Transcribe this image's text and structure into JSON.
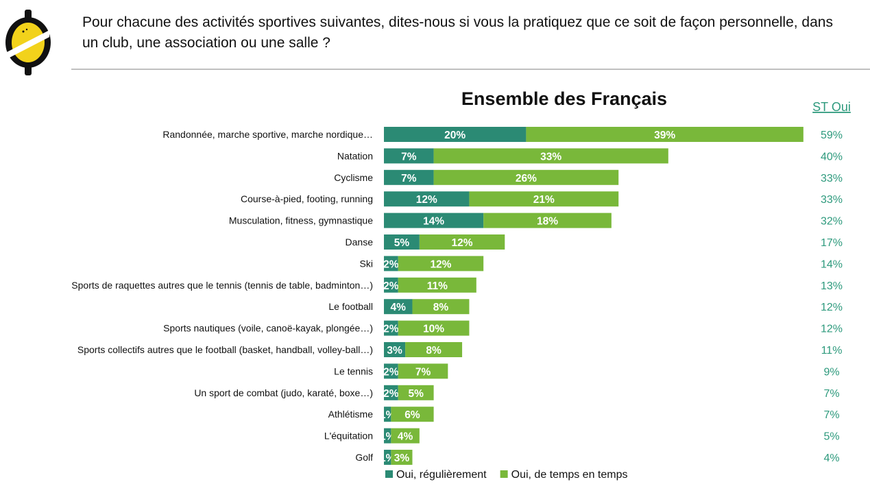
{
  "header": {
    "question": "Pour chacune des activités sportives suivantes, dites-nous si vous la pratiquez que ce soit de façon personnelle, dans un club, une association ou une salle ?"
  },
  "logo": {
    "icon": "lemon-logo-icon"
  },
  "colors": {
    "regulier": "#2b8a74",
    "temps": "#79b83a",
    "st": "#2e9a7d"
  },
  "chart_data": {
    "type": "bar",
    "orientation": "horizontal",
    "stacked": true,
    "title": "Ensemble des Français",
    "total_label": "ST Oui",
    "categories": [
      "Randonnée, marche sportive, marche nordique…",
      "Natation",
      "Cyclisme",
      "Course-à-pied, footing, running",
      "Musculation, fitness, gymnastique",
      "Danse",
      "Ski",
      "Sports de raquettes autres que le tennis (tennis de table, badminton…)",
      "Le football",
      "Sports nautiques (voile, canoë-kayak, plongée…)",
      "Sports collectifs autres que le football (basket, handball, volley-ball…)",
      "Le tennis",
      "Un sport de combat (judo, karaté, boxe…)",
      "Athlétisme",
      "L'équitation",
      "Golf"
    ],
    "series": [
      {
        "name": "Oui, régulièrement",
        "values": [
          20,
          7,
          7,
          12,
          14,
          5,
          2,
          2,
          4,
          2,
          3,
          2,
          2,
          1,
          1,
          1
        ]
      },
      {
        "name": "Oui, de temps en temps",
        "values": [
          39,
          33,
          26,
          21,
          18,
          12,
          12,
          11,
          8,
          10,
          8,
          7,
          5,
          6,
          4,
          3
        ]
      }
    ],
    "totals": [
      59,
      40,
      33,
      33,
      32,
      17,
      14,
      13,
      12,
      12,
      11,
      9,
      7,
      7,
      5,
      4
    ],
    "unit": "%",
    "legend_position": "bottom",
    "grid": false
  }
}
